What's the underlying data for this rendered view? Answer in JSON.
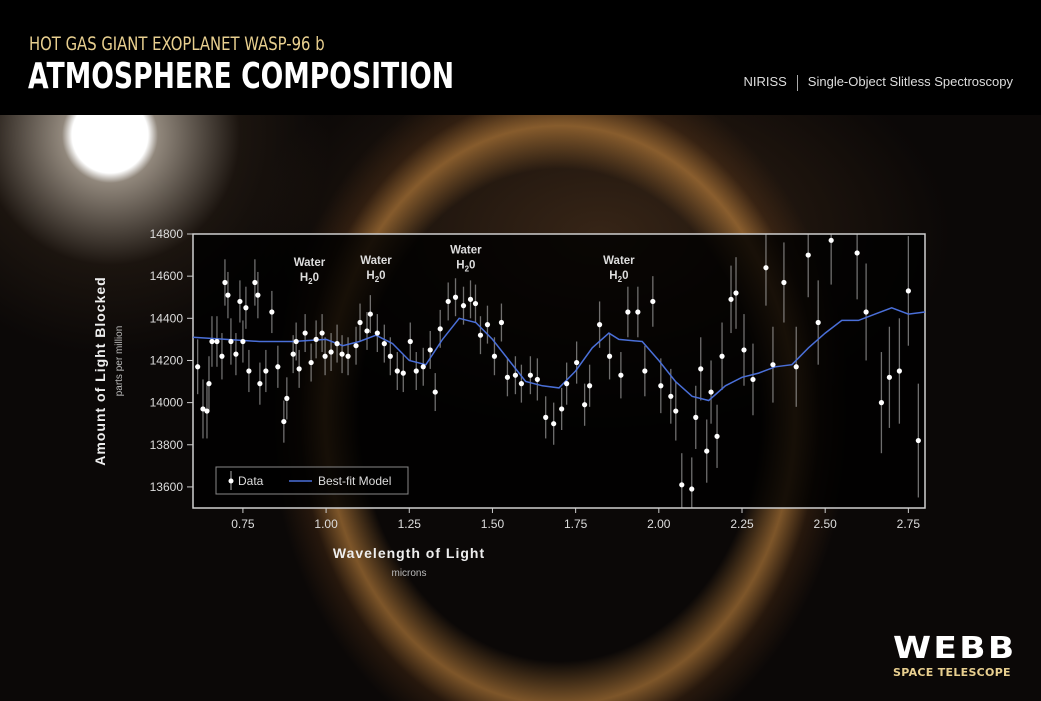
{
  "header": {
    "subtitle": "HOT GAS GIANT EXOPLANET WASP-96 b",
    "title": "ATMOSPHERE COMPOSITION",
    "instrument": "NIRISS",
    "mode": "Single-Object Slitless Spectroscopy"
  },
  "logo": {
    "word": "WEBB",
    "sub": "SPACE TELESCOPE"
  },
  "colors": {
    "model": "#4a6fd8",
    "data": "#ffffff",
    "subtitle": "#e8cf8f"
  },
  "chart_data": {
    "type": "scatter",
    "xlabel": "Wavelength of Light",
    "xunit": "microns",
    "ylabel": "Amount of Light Blocked",
    "yunit": "parts per million",
    "xlim": [
      0.6,
      2.8
    ],
    "ylim": [
      13500,
      14800
    ],
    "xticks": [
      "0.75",
      "1.00",
      "1.25",
      "1.50",
      "1.75",
      "2.00",
      "2.25",
      "2.50",
      "2.75"
    ],
    "yticks": [
      "13600",
      "13800",
      "14000",
      "14200",
      "14400",
      "14600",
      "14800"
    ],
    "legend": {
      "position": "bottom-left",
      "data_label": "Data",
      "model_label": "Best-fit Model"
    },
    "annotations": [
      {
        "x": 0.95,
        "y": 14620,
        "label": "Water",
        "formula": "H",
        "sub": "2",
        "tail": "0"
      },
      {
        "x": 1.15,
        "y": 14630,
        "label": "Water",
        "formula": "H",
        "sub": "2",
        "tail": "0"
      },
      {
        "x": 1.42,
        "y": 14680,
        "label": "Water",
        "formula": "H",
        "sub": "2",
        "tail": "0"
      },
      {
        "x": 1.88,
        "y": 14630,
        "label": "Water",
        "formula": "H",
        "sub": "2",
        "tail": "0"
      }
    ],
    "series": [
      {
        "name": "Data",
        "points": [
          [
            0.614,
            14170,
            130
          ],
          [
            0.63,
            13970,
            140
          ],
          [
            0.642,
            13960,
            130
          ],
          [
            0.648,
            14090,
            130
          ],
          [
            0.657,
            14290,
            120
          ],
          [
            0.672,
            14290,
            120
          ],
          [
            0.687,
            14220,
            110
          ],
          [
            0.696,
            14570,
            110
          ],
          [
            0.705,
            14510,
            110
          ],
          [
            0.714,
            14290,
            110
          ],
          [
            0.729,
            14230,
            100
          ],
          [
            0.741,
            14480,
            100
          ],
          [
            0.75,
            14290,
            100
          ],
          [
            0.759,
            14450,
            100
          ],
          [
            0.768,
            14150,
            100
          ],
          [
            0.786,
            14570,
            110
          ],
          [
            0.795,
            14510,
            110
          ],
          [
            0.801,
            14090,
            100
          ],
          [
            0.819,
            14150,
            100
          ],
          [
            0.837,
            14430,
            100
          ],
          [
            0.855,
            14170,
            100
          ],
          [
            0.873,
            13910,
            100
          ],
          [
            0.882,
            14020,
            100
          ],
          [
            0.901,
            14230,
            90
          ],
          [
            0.91,
            14290,
            90
          ],
          [
            0.919,
            14160,
            90
          ],
          [
            0.937,
            14330,
            90
          ],
          [
            0.955,
            14190,
            90
          ],
          [
            0.97,
            14300,
            90
          ],
          [
            0.988,
            14330,
            90
          ],
          [
            0.997,
            14220,
            90
          ],
          [
            1.015,
            14240,
            90
          ],
          [
            1.033,
            14280,
            90
          ],
          [
            1.048,
            14230,
            90
          ],
          [
            1.066,
            14220,
            90
          ],
          [
            1.09,
            14270,
            90
          ],
          [
            1.102,
            14380,
            90
          ],
          [
            1.123,
            14340,
            90
          ],
          [
            1.133,
            14420,
            90
          ],
          [
            1.154,
            14330,
            90
          ],
          [
            1.175,
            14280,
            90
          ],
          [
            1.193,
            14220,
            90
          ],
          [
            1.214,
            14150,
            90
          ],
          [
            1.232,
            14140,
            90
          ],
          [
            1.253,
            14290,
            90
          ],
          [
            1.271,
            14150,
            90
          ],
          [
            1.292,
            14170,
            90
          ],
          [
            1.313,
            14250,
            90
          ],
          [
            1.328,
            14050,
            90
          ],
          [
            1.343,
            14350,
            90
          ],
          [
            1.367,
            14480,
            90
          ],
          [
            1.389,
            14500,
            90
          ],
          [
            1.413,
            14460,
            90
          ],
          [
            1.434,
            14490,
            90
          ],
          [
            1.449,
            14470,
            90
          ],
          [
            1.464,
            14320,
            90
          ],
          [
            1.485,
            14370,
            90
          ],
          [
            1.506,
            14220,
            90
          ],
          [
            1.527,
            14380,
            90
          ],
          [
            1.545,
            14120,
            90
          ],
          [
            1.569,
            14130,
            90
          ],
          [
            1.587,
            14090,
            90
          ],
          [
            1.614,
            14130,
            90
          ],
          [
            1.635,
            14110,
            100
          ],
          [
            1.66,
            13930,
            100
          ],
          [
            1.684,
            13900,
            100
          ],
          [
            1.708,
            13970,
            100
          ],
          [
            1.723,
            14090,
            100
          ],
          [
            1.753,
            14190,
            100
          ],
          [
            1.777,
            13990,
            100
          ],
          [
            1.792,
            14080,
            100
          ],
          [
            1.822,
            14370,
            110
          ],
          [
            1.852,
            14220,
            110
          ],
          [
            1.886,
            14130,
            110
          ],
          [
            1.907,
            14430,
            120
          ],
          [
            1.937,
            14430,
            120
          ],
          [
            1.958,
            14150,
            120
          ],
          [
            1.982,
            14480,
            120
          ],
          [
            2.006,
            14080,
            130
          ],
          [
            2.036,
            14030,
            130
          ],
          [
            2.051,
            13960,
            140
          ],
          [
            2.069,
            13610,
            150
          ],
          [
            2.099,
            13590,
            150
          ],
          [
            2.111,
            13930,
            150
          ],
          [
            2.126,
            14160,
            150
          ],
          [
            2.144,
            13770,
            150
          ],
          [
            2.157,
            14050,
            150
          ],
          [
            2.175,
            13840,
            150
          ],
          [
            2.19,
            14220,
            160
          ],
          [
            2.217,
            14490,
            160
          ],
          [
            2.232,
            14520,
            170
          ],
          [
            2.256,
            14250,
            170
          ],
          [
            2.283,
            14110,
            170
          ],
          [
            2.322,
            14640,
            180
          ],
          [
            2.343,
            14180,
            180
          ],
          [
            2.376,
            14570,
            190
          ],
          [
            2.413,
            14170,
            190
          ],
          [
            2.449,
            14700,
            200
          ],
          [
            2.479,
            14380,
            200
          ],
          [
            2.518,
            14770,
            210
          ],
          [
            2.596,
            14710,
            220
          ],
          [
            2.623,
            14430,
            230
          ],
          [
            2.669,
            14000,
            240
          ],
          [
            2.693,
            14120,
            240
          ],
          [
            2.723,
            14150,
            250
          ],
          [
            2.75,
            14530,
            260
          ],
          [
            2.78,
            13820,
            270
          ]
        ]
      },
      {
        "name": "Best-fit Model",
        "points": [
          [
            0.6,
            14310
          ],
          [
            0.7,
            14300
          ],
          [
            0.8,
            14290
          ],
          [
            0.9,
            14290
          ],
          [
            1.0,
            14300
          ],
          [
            1.05,
            14270
          ],
          [
            1.1,
            14290
          ],
          [
            1.15,
            14320
          ],
          [
            1.2,
            14280
          ],
          [
            1.25,
            14200
          ],
          [
            1.3,
            14180
          ],
          [
            1.35,
            14300
          ],
          [
            1.4,
            14400
          ],
          [
            1.45,
            14380
          ],
          [
            1.5,
            14300
          ],
          [
            1.55,
            14200
          ],
          [
            1.6,
            14100
          ],
          [
            1.65,
            14080
          ],
          [
            1.7,
            14070
          ],
          [
            1.75,
            14150
          ],
          [
            1.8,
            14260
          ],
          [
            1.85,
            14330
          ],
          [
            1.88,
            14300
          ],
          [
            1.95,
            14290
          ],
          [
            2.0,
            14200
          ],
          [
            2.05,
            14100
          ],
          [
            2.1,
            14030
          ],
          [
            2.15,
            14010
          ],
          [
            2.2,
            14080
          ],
          [
            2.25,
            14120
          ],
          [
            2.3,
            14140
          ],
          [
            2.35,
            14170
          ],
          [
            2.4,
            14180
          ],
          [
            2.45,
            14260
          ],
          [
            2.5,
            14330
          ],
          [
            2.55,
            14390
          ],
          [
            2.6,
            14390
          ],
          [
            2.65,
            14420
          ],
          [
            2.7,
            14450
          ],
          [
            2.75,
            14420
          ],
          [
            2.8,
            14430
          ]
        ]
      }
    ]
  }
}
